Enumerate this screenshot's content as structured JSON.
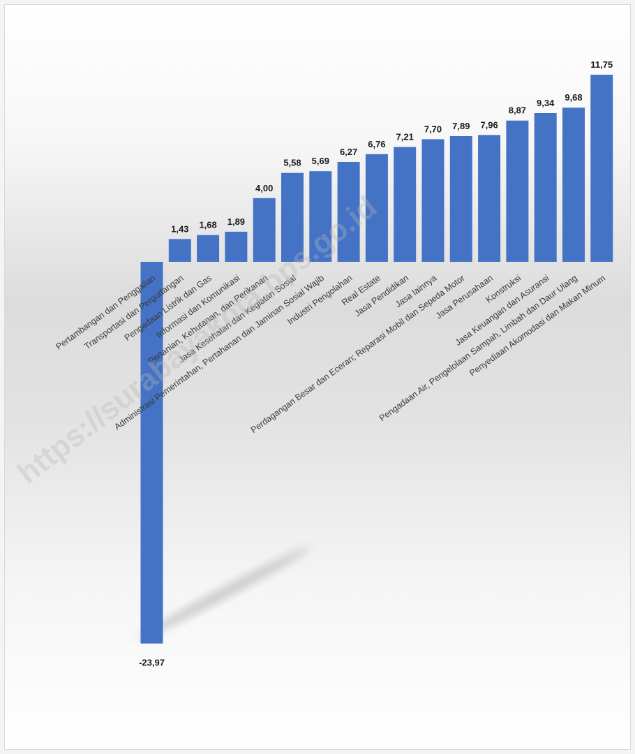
{
  "chart_data": {
    "type": "bar",
    "title": "",
    "xlabel": "",
    "ylabel": "",
    "categories": [
      "Pertambangan dan Penggalian",
      "Transportasi dan Pergudangan",
      "Pengadaan Listrik dan Gas",
      "Informasi dan Komunikasi",
      "Pertanian, Kehutanan, dan Perikanan",
      "Jasa Kesehatan dan Kegiatan Sosial",
      "Administrasi Pemerintahan, Pertahanan dan Jaminan Sosial Wajib",
      "Industri Pengolahan",
      "Real Estate",
      "Jasa Pendidikan",
      "Jasa lainnya",
      "Perdagangan Besar dan Eceran; Reparasi Mobil dan Sepeda Motor",
      "Jasa Perusahaan",
      "Konstruksi",
      "Jasa Keuangan dan Asuransi",
      "Pengadaan Air, Pengelolaan Sampah, Limbah dan Daur Ulang",
      "Penyediaan Akomodasi dan Makan Minum"
    ],
    "values": [
      -23.97,
      1.43,
      1.68,
      1.89,
      4.0,
      5.58,
      5.69,
      6.27,
      6.76,
      7.21,
      7.7,
      7.89,
      7.96,
      8.87,
      9.34,
      9.68,
      11.75
    ],
    "value_labels": [
      "-23,97",
      "1,43",
      "1,68",
      "1,89",
      "4,00",
      "5,58",
      "5,69",
      "6,27",
      "6,76",
      "7,21",
      "7,70",
      "7,89",
      "7,96",
      "8,87",
      "9,34",
      "9,68",
      "11,75"
    ],
    "ylim": [
      -23.97,
      11.75
    ],
    "grid": false,
    "legend": "none",
    "bar_color": "#4472c4",
    "watermark": "https://surabayakota.bps.go.id"
  }
}
